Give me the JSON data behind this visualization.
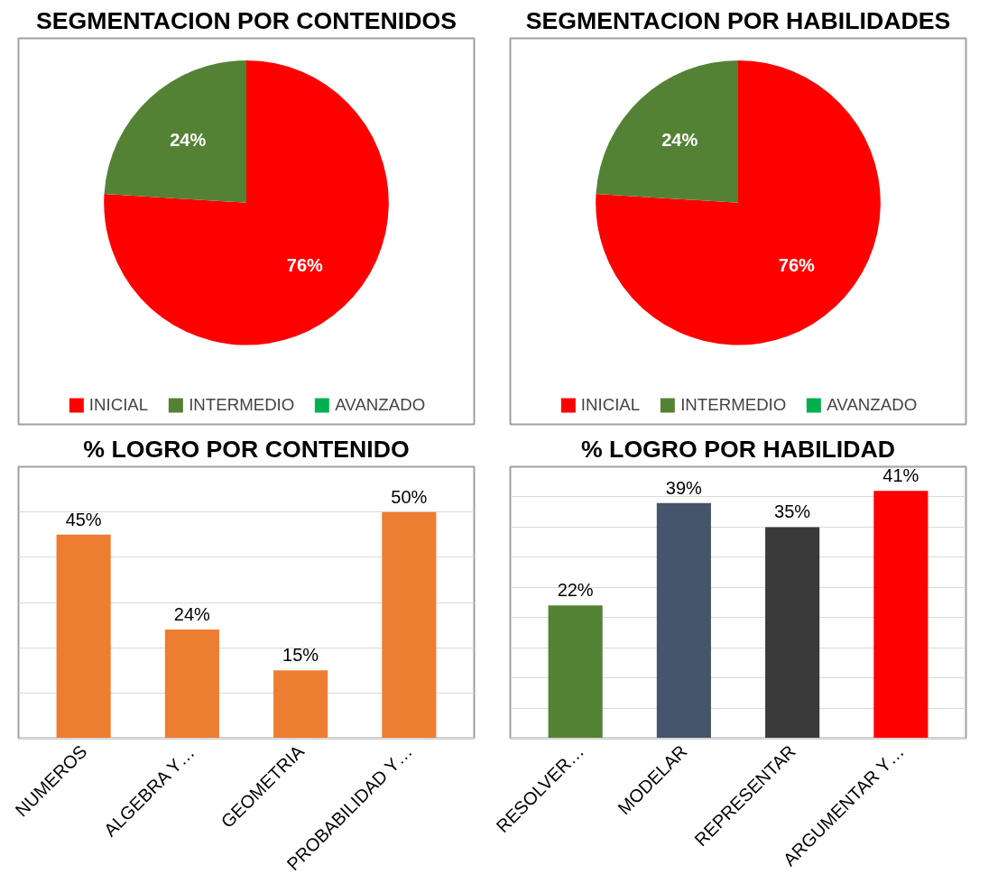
{
  "chart_data": [
    {
      "type": "pie",
      "title": "SEGMENTACION POR CONTENIDOS",
      "categories": [
        "INICIAL",
        "INTERMEDIO",
        "AVANZADO"
      ],
      "values": [
        76,
        24,
        0
      ],
      "colors": [
        "#ff0000",
        "#548235",
        "#00b050"
      ],
      "value_labels": [
        "76%",
        "24%",
        null
      ],
      "legend": "bottom"
    },
    {
      "type": "pie",
      "title": "SEGMENTACION POR HABILIDADES",
      "categories": [
        "INICIAL",
        "INTERMEDIO",
        "AVANZADO"
      ],
      "values": [
        76,
        24,
        0
      ],
      "colors": [
        "#ff0000",
        "#548235",
        "#00b050"
      ],
      "value_labels": [
        "76%",
        "24%",
        null
      ],
      "legend": "bottom"
    },
    {
      "type": "bar",
      "title": "% LOGRO POR CONTENIDO",
      "categories": [
        "NUMEROS",
        "ALGEBRA Y…",
        "GEOMETRIA",
        "PROBABILIDAD Y…"
      ],
      "values": [
        45,
        24,
        15,
        50
      ],
      "value_labels": [
        "45%",
        "24%",
        "15%",
        "50%"
      ],
      "color": "#ed7d31",
      "ylim": [
        0,
        60
      ],
      "yticks": [
        {
          "value": 0,
          "label": null
        },
        {
          "value": 10,
          "label": null
        },
        {
          "value": 20,
          "label": null
        },
        {
          "value": 30,
          "label": null
        },
        {
          "value": 40,
          "label": null
        },
        {
          "value": 50,
          "label": null
        },
        {
          "value": 60,
          "label": null
        }
      ],
      "grid": "y",
      "tick_labels": "x"
    },
    {
      "type": "bar",
      "title": "% LOGRO POR HABILIDAD",
      "categories": [
        "RESOLVER…",
        "MODELAR",
        "REPRESENTAR",
        "ARGUMENTAR Y…"
      ],
      "values": [
        22,
        39,
        35,
        41
      ],
      "value_labels": [
        "22%",
        "39%",
        "35%",
        "41%"
      ],
      "colors": [
        "#548235",
        "#44546a",
        "#3a3a3a",
        "#ff0000"
      ],
      "ylim": [
        0,
        45
      ],
      "yticks": [
        {
          "value": 0,
          "label": null
        },
        {
          "value": 5,
          "label": null
        },
        {
          "value": 10,
          "label": null
        },
        {
          "value": 15,
          "label": null
        },
        {
          "value": 20,
          "label": null
        },
        {
          "value": 25,
          "label": null
        },
        {
          "value": 30,
          "label": null
        },
        {
          "value": 35,
          "label": null
        },
        {
          "value": 40,
          "label": null
        },
        {
          "value": 45,
          "label": null
        }
      ],
      "grid": "y",
      "tick_labels": "x"
    }
  ]
}
